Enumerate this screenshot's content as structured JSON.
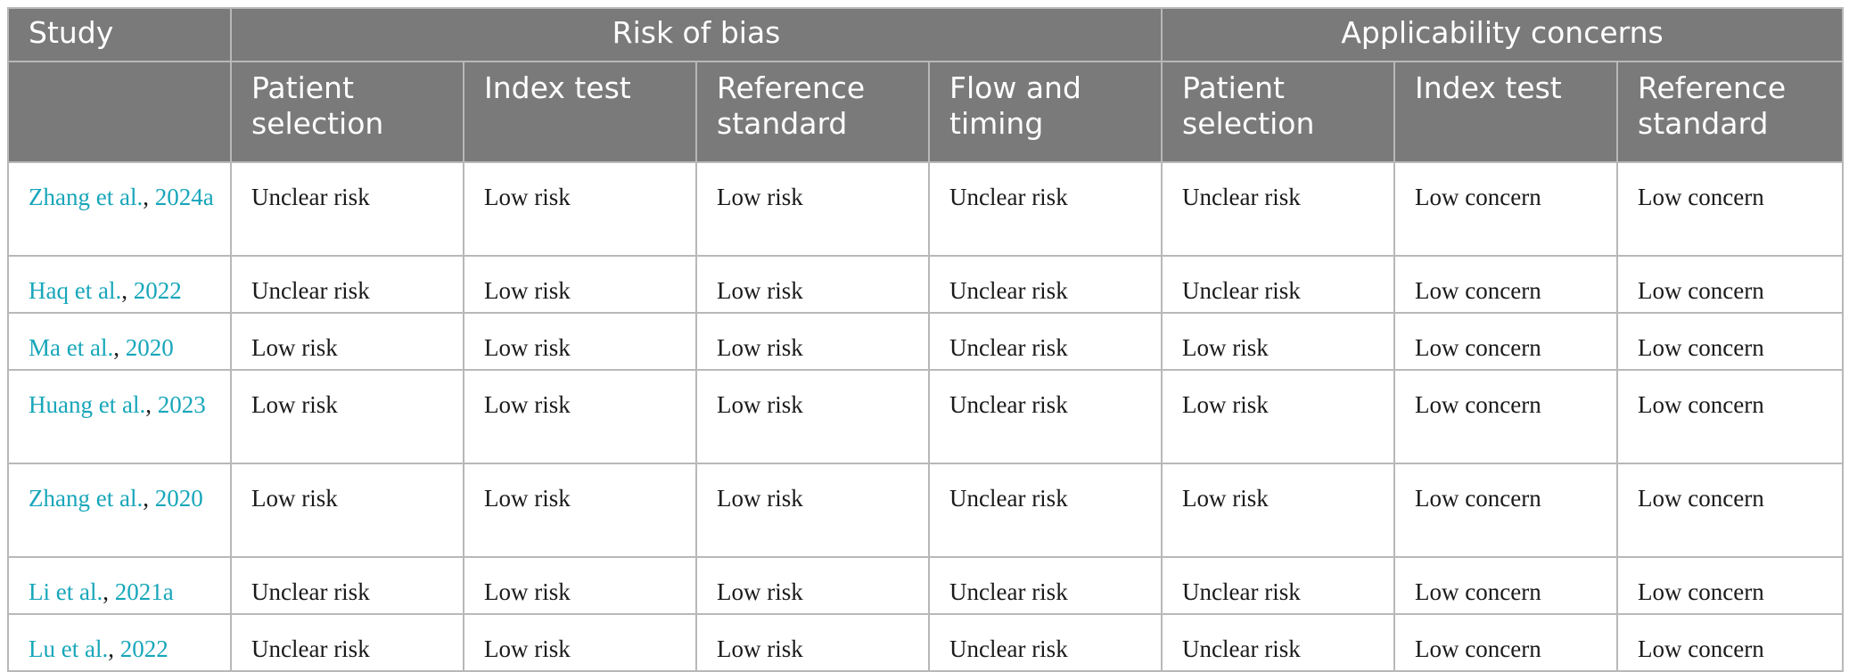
{
  "table": {
    "headers": {
      "study": "Study",
      "risk_of_bias": "Risk of bias",
      "applicability_concerns": "Applicability concerns",
      "sub": [
        "Patient selection",
        "Index test",
        "Reference standard",
        "Flow and timing",
        "Patient selection",
        "Index test",
        "Reference standard"
      ]
    },
    "rows": [
      {
        "author": "Zhang et al.",
        "year": "2024a",
        "cells": [
          "Unclear risk",
          "Low risk",
          "Low risk",
          "Unclear risk",
          "Unclear risk",
          "Low concern",
          "Low concern"
        ]
      },
      {
        "author": "Haq et al.",
        "year": "2022",
        "cells": [
          "Unclear risk",
          "Low risk",
          "Low risk",
          "Unclear risk",
          "Unclear risk",
          "Low concern",
          "Low concern"
        ]
      },
      {
        "author": "Ma et al.",
        "year": "2020",
        "cells": [
          "Low risk",
          "Low risk",
          "Low risk",
          "Unclear risk",
          "Low risk",
          "Low concern",
          "Low concern"
        ]
      },
      {
        "author": "Huang et al.",
        "year": "2023",
        "cells": [
          "Low risk",
          "Low risk",
          "Low risk",
          "Unclear risk",
          "Low risk",
          "Low concern",
          "Low concern"
        ]
      },
      {
        "author": "Zhang et al.",
        "year": "2020",
        "cells": [
          "Low risk",
          "Low risk",
          "Low risk",
          "Unclear risk",
          "Low risk",
          "Low concern",
          "Low concern"
        ]
      },
      {
        "author": "Li et al.",
        "year": "2021a",
        "cells": [
          "Unclear risk",
          "Low risk",
          "Low risk",
          "Unclear risk",
          "Unclear risk",
          "Low concern",
          "Low concern"
        ]
      },
      {
        "author": "Lu et al.",
        "year": "2022",
        "cells": [
          "Unclear risk",
          "Low risk",
          "Low risk",
          "Unclear risk",
          "Unclear risk",
          "Low concern",
          "Low concern"
        ]
      }
    ]
  }
}
